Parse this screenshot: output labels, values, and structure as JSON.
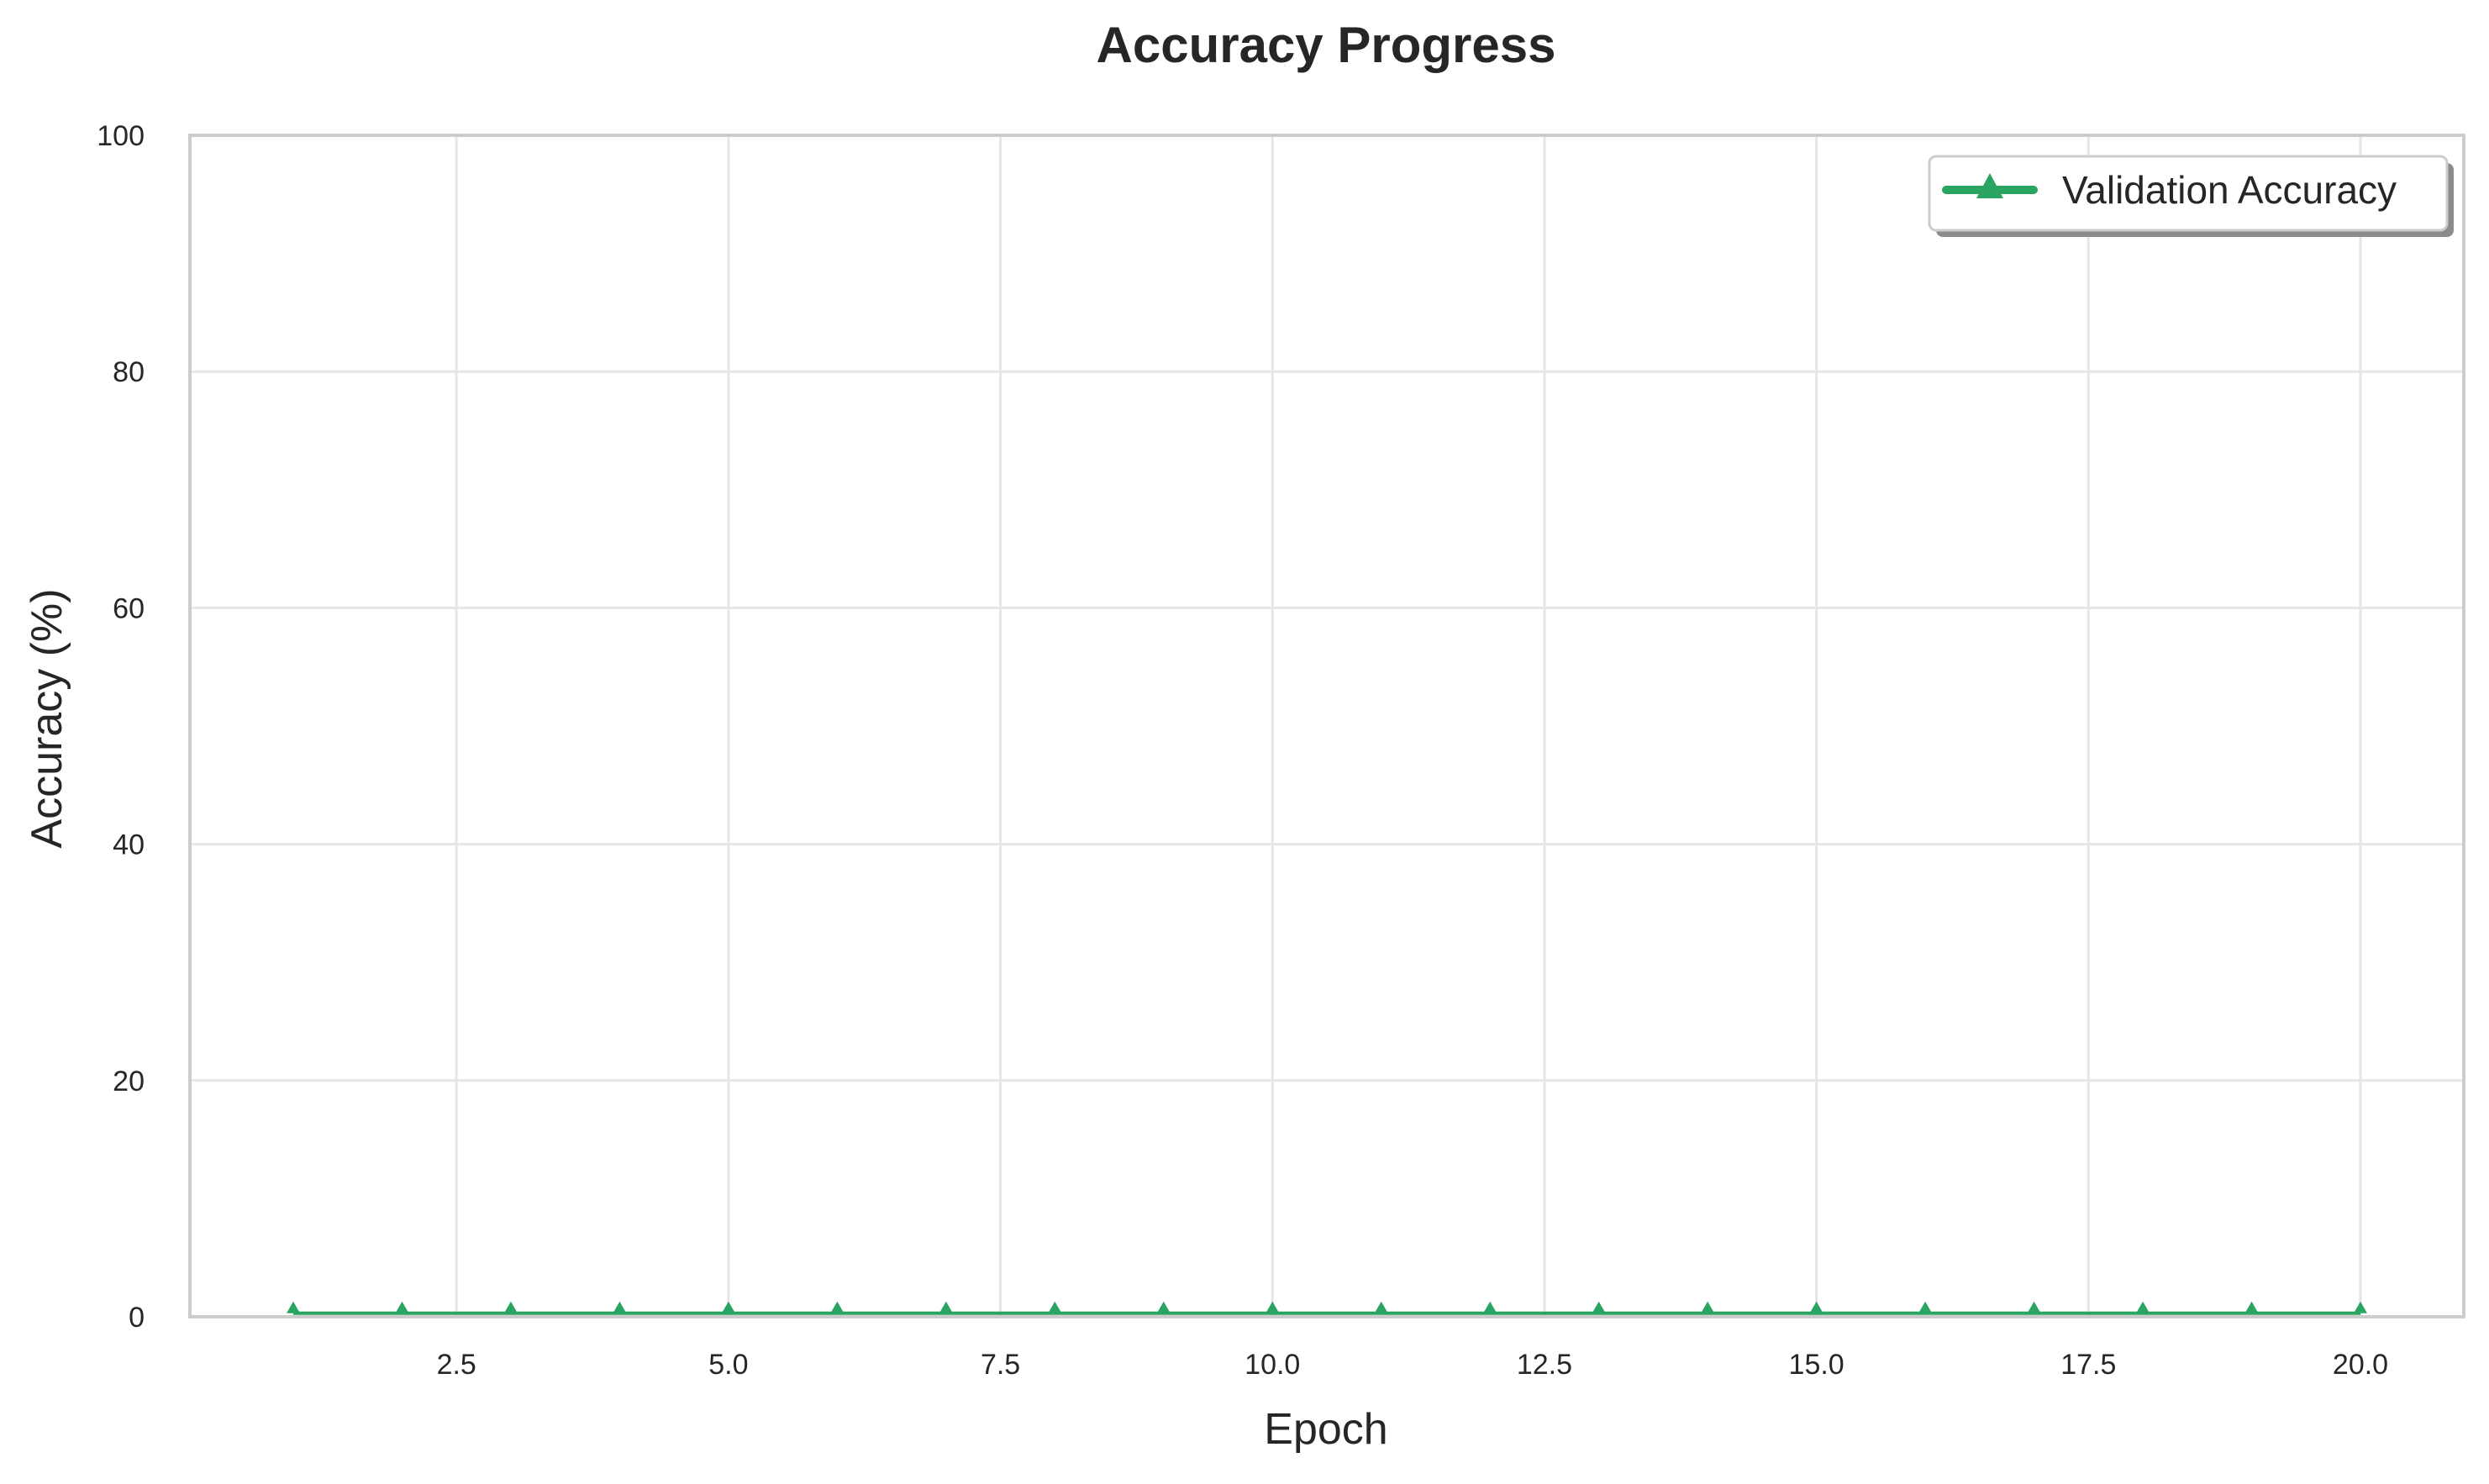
{
  "chart_data": {
    "type": "line",
    "title": "Accuracy Progress",
    "xlabel": "Epoch",
    "ylabel": "Accuracy (%)",
    "xlim": [
      0.05,
      20.95
    ],
    "ylim": [
      0,
      100
    ],
    "xticks": [
      2.5,
      5.0,
      7.5,
      10.0,
      12.5,
      15.0,
      17.5,
      20.0
    ],
    "xtick_labels": [
      "2.5",
      "5.0",
      "7.5",
      "10.0",
      "12.5",
      "15.0",
      "17.5",
      "20.0"
    ],
    "yticks": [
      0,
      20,
      40,
      60,
      80,
      100
    ],
    "ytick_labels": [
      "0",
      "20",
      "40",
      "60",
      "80",
      "100"
    ],
    "grid": true,
    "legend_position": "top-right",
    "x": [
      1,
      2,
      3,
      4,
      5,
      6,
      7,
      8,
      9,
      10,
      11,
      12,
      13,
      14,
      15,
      16,
      17,
      18,
      19,
      20
    ],
    "series": [
      {
        "name": "Validation Accuracy",
        "values": [
          0.3,
          0.3,
          0.3,
          0.3,
          0.3,
          0.3,
          0.3,
          0.3,
          0.3,
          0.3,
          0.3,
          0.3,
          0.3,
          0.3,
          0.3,
          0.3,
          0.3,
          0.3,
          0.3,
          0.3
        ],
        "color": "#2aa561",
        "marker": "triangle-up-icon"
      }
    ]
  }
}
